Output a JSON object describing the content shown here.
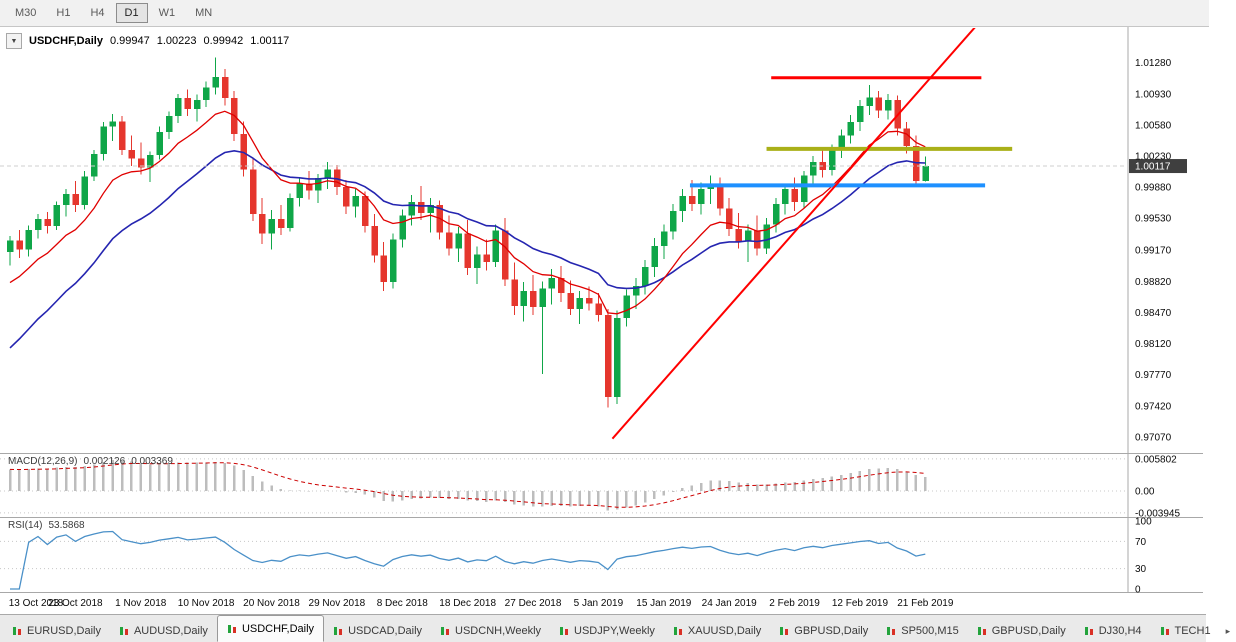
{
  "timeframe_toolbar": {
    "items": [
      {
        "label": "M30",
        "active": false
      },
      {
        "label": "H1",
        "active": false
      },
      {
        "label": "H4",
        "active": false
      },
      {
        "label": "D1",
        "active": true
      },
      {
        "label": "W1",
        "active": false
      },
      {
        "label": "MN",
        "active": false
      }
    ]
  },
  "chart_header": {
    "dropdown_icon": "▼",
    "symbol_label": "USDCHF,Daily",
    "open": "0.99947",
    "high": "1.00223",
    "low": "0.99942",
    "close": "1.00117"
  },
  "price_axis": {
    "ticks": [
      {
        "text": "1.01280",
        "value": 1.0128
      },
      {
        "text": "1.00930",
        "value": 1.0093
      },
      {
        "text": "1.00580",
        "value": 1.0058
      },
      {
        "text": "1.00230",
        "value": 1.0023
      },
      {
        "text": "0.99880",
        "value": 0.9988
      },
      {
        "text": "0.99530",
        "value": 0.9953
      },
      {
        "text": "0.99170",
        "value": 0.9917
      },
      {
        "text": "0.98820",
        "value": 0.9882
      },
      {
        "text": "0.98470",
        "value": 0.9847
      },
      {
        "text": "0.98120",
        "value": 0.9812
      },
      {
        "text": "0.97770",
        "value": 0.9777
      },
      {
        "text": "0.97420",
        "value": 0.9742
      },
      {
        "text": "0.97070",
        "value": 0.9707
      }
    ],
    "current_price_label": "1.00117",
    "current_price_value": 1.00117
  },
  "time_axis": {
    "labels": [
      {
        "text": "13 Oct 2018",
        "bar": 0
      },
      {
        "text": "23 Oct 2018",
        "bar": 7
      },
      {
        "text": "1 Nov 2018",
        "bar": 14
      },
      {
        "text": "10 Nov 2018",
        "bar": 21
      },
      {
        "text": "20 Nov 2018",
        "bar": 28
      },
      {
        "text": "29 Nov 2018",
        "bar": 35
      },
      {
        "text": "8 Dec 2018",
        "bar": 42
      },
      {
        "text": "18 Dec 2018",
        "bar": 49
      },
      {
        "text": "27 Dec 2018",
        "bar": 56
      },
      {
        "text": "5 Jan 2019",
        "bar": 63
      },
      {
        "text": "15 Jan 2019",
        "bar": 70
      },
      {
        "text": "24 Jan 2019",
        "bar": 77
      },
      {
        "text": "2 Feb 2019",
        "bar": 84
      },
      {
        "text": "12 Feb 2019",
        "bar": 91
      },
      {
        "text": "21 Feb 2019",
        "bar": 98
      }
    ]
  },
  "indicators": {
    "macd": {
      "name": "MACD(12,26,9)",
      "value": "0.002126",
      "signal": "0.003369",
      "axis": [
        {
          "text": "0.005802",
          "value": 0.005802
        },
        {
          "text": "0.00",
          "value": 0
        },
        {
          "text": "-0.003945",
          "value": -0.003945
        }
      ]
    },
    "rsi": {
      "name": "RSI(14)",
      "value": "53.5868",
      "axis": [
        {
          "text": "100",
          "value": 100
        },
        {
          "text": "70",
          "value": 70
        },
        {
          "text": "30",
          "value": 30
        },
        {
          "text": "0",
          "value": 0
        }
      ],
      "levels": [
        70,
        30
      ]
    }
  },
  "colors": {
    "candle_up": "#0fa648",
    "candle_down": "#e5362d",
    "ma_fast": "#e00000",
    "ma_slow": "#2525b0",
    "macd_histogram": "#bdbdbd",
    "macd_signal": "#cc0000",
    "rsi_line": "#4a90c8",
    "grid_dotted": "#c8c8c8",
    "axis_text": "#0a0a0a",
    "price_tag_bg": "#3f3f3f",
    "price_tag_text": "#ffffff"
  },
  "chart_data": {
    "type": "candlestick",
    "symbol": "USDCHF",
    "timeframe": "Daily",
    "ohlc_current": {
      "open": 0.99947,
      "high": 1.00223,
      "low": 0.99942,
      "close": 1.00117
    },
    "price_range": [
      0.969,
      1.0167
    ],
    "grid": false,
    "candles": [
      [
        0.9915,
        0.9933,
        0.99,
        0.9928
      ],
      [
        0.9928,
        0.994,
        0.9908,
        0.9918
      ],
      [
        0.9918,
        0.9945,
        0.991,
        0.994
      ],
      [
        0.994,
        0.9958,
        0.993,
        0.9952
      ],
      [
        0.9952,
        0.996,
        0.9936,
        0.9944
      ],
      [
        0.9944,
        0.9972,
        0.994,
        0.9968
      ],
      [
        0.9968,
        0.9986,
        0.9955,
        0.998
      ],
      [
        0.998,
        0.9995,
        0.996,
        0.9968
      ],
      [
        0.9968,
        1.0006,
        0.9963,
        1.0
      ],
      [
        1.0,
        1.003,
        0.9995,
        1.0025
      ],
      [
        1.0025,
        1.0061,
        1.0018,
        1.0056
      ],
      [
        1.0056,
        1.007,
        1.004,
        1.0062
      ],
      [
        1.0062,
        1.0068,
        1.0024,
        1.003
      ],
      [
        1.003,
        1.0046,
        1.0012,
        1.002
      ],
      [
        1.002,
        1.0038,
        1.0002,
        1.001
      ],
      [
        1.001,
        1.0028,
        0.9994,
        1.0024
      ],
      [
        1.0024,
        1.0056,
        1.0019,
        1.005
      ],
      [
        1.005,
        1.0073,
        1.0042,
        1.0068
      ],
      [
        1.0068,
        1.0093,
        1.006,
        1.0088
      ],
      [
        1.0088,
        1.0098,
        1.0068,
        1.0076
      ],
      [
        1.0076,
        1.0092,
        1.0062,
        1.0086
      ],
      [
        1.0086,
        1.0107,
        1.0078,
        1.01
      ],
      [
        1.01,
        1.0134,
        1.0092,
        1.0112
      ],
      [
        1.0112,
        1.0121,
        1.008,
        1.0088
      ],
      [
        1.0088,
        1.0096,
        1.004,
        1.0048
      ],
      [
        1.0048,
        1.0062,
        1.0,
        1.0008
      ],
      [
        1.0008,
        1.002,
        0.995,
        0.9958
      ],
      [
        0.9958,
        0.9976,
        0.9924,
        0.9936
      ],
      [
        0.9936,
        0.9962,
        0.9918,
        0.9952
      ],
      [
        0.9952,
        0.9968,
        0.9934,
        0.9942
      ],
      [
        0.9942,
        0.9981,
        0.9938,
        0.9976
      ],
      [
        0.9976,
        0.9999,
        0.9966,
        0.9992
      ],
      [
        0.9992,
        1.0006,
        0.9974,
        0.9984
      ],
      [
        0.9984,
        1.0003,
        0.997,
        0.9998
      ],
      [
        0.9998,
        1.0016,
        0.9986,
        1.0008
      ],
      [
        1.0008,
        1.0013,
        0.9979,
        0.9988
      ],
      [
        0.9988,
        0.9996,
        0.9958,
        0.9966
      ],
      [
        0.9966,
        0.9986,
        0.9954,
        0.9978
      ],
      [
        0.9978,
        0.9983,
        0.9937,
        0.9944
      ],
      [
        0.9944,
        0.9958,
        0.9903,
        0.9911
      ],
      [
        0.9911,
        0.9926,
        0.9871,
        0.9881
      ],
      [
        0.9881,
        0.9936,
        0.9874,
        0.9929
      ],
      [
        0.9929,
        0.9963,
        0.992,
        0.9956
      ],
      [
        0.9956,
        0.9979,
        0.9945,
        0.9971
      ],
      [
        0.9971,
        0.9989,
        0.9951,
        0.9959
      ],
      [
        0.9959,
        0.9976,
        0.9937,
        0.9968
      ],
      [
        0.9968,
        0.9973,
        0.9929,
        0.9937
      ],
      [
        0.9937,
        0.9956,
        0.9911,
        0.9919
      ],
      [
        0.9919,
        0.9943,
        0.9904,
        0.9936
      ],
      [
        0.9936,
        0.9951,
        0.9889,
        0.9897
      ],
      [
        0.9897,
        0.9921,
        0.9879,
        0.9912
      ],
      [
        0.9912,
        0.9929,
        0.9894,
        0.9904
      ],
      [
        0.9904,
        0.9946,
        0.9898,
        0.9939
      ],
      [
        0.9939,
        0.9953,
        0.9877,
        0.9884
      ],
      [
        0.9884,
        0.9903,
        0.9844,
        0.9854
      ],
      [
        0.9854,
        0.9881,
        0.9837,
        0.9871
      ],
      [
        0.9871,
        0.9889,
        0.9844,
        0.9853
      ],
      [
        0.9853,
        0.9882,
        0.9778,
        0.9874
      ],
      [
        0.9874,
        0.9896,
        0.9856,
        0.9886
      ],
      [
        0.9886,
        0.9899,
        0.9859,
        0.9869
      ],
      [
        0.9869,
        0.9883,
        0.9844,
        0.9851
      ],
      [
        0.9851,
        0.9871,
        0.9834,
        0.9863
      ],
      [
        0.9863,
        0.9876,
        0.9849,
        0.9857
      ],
      [
        0.9857,
        0.9869,
        0.9837,
        0.9844
      ],
      [
        0.9844,
        0.9851,
        0.974,
        0.9752
      ],
      [
        0.9752,
        0.9849,
        0.9744,
        0.9841
      ],
      [
        0.9841,
        0.9873,
        0.9831,
        0.9866
      ],
      [
        0.9866,
        0.9886,
        0.9851,
        0.9877
      ],
      [
        0.9877,
        0.9906,
        0.9867,
        0.9898
      ],
      [
        0.9898,
        0.9931,
        0.9887,
        0.9922
      ],
      [
        0.9922,
        0.9946,
        0.9907,
        0.9938
      ],
      [
        0.9938,
        0.9969,
        0.9929,
        0.9961
      ],
      [
        0.9961,
        0.9986,
        0.9949,
        0.9978
      ],
      [
        0.9978,
        0.9996,
        0.9961,
        0.9969
      ],
      [
        0.9969,
        0.9993,
        0.9957,
        0.9986
      ],
      [
        0.9986,
        1.0001,
        0.9969,
        0.9992
      ],
      [
        0.9992,
        0.9999,
        0.9956,
        0.9964
      ],
      [
        0.9964,
        0.9976,
        0.9933,
        0.9941
      ],
      [
        0.9941,
        0.9959,
        0.9919,
        0.9927
      ],
      [
        0.9927,
        0.9946,
        0.9904,
        0.9939
      ],
      [
        0.9939,
        0.9956,
        0.9911,
        0.9919
      ],
      [
        0.9919,
        0.9953,
        0.9913,
        0.9946
      ],
      [
        0.9946,
        0.9976,
        0.9937,
        0.9969
      ],
      [
        0.9969,
        0.9991,
        0.9957,
        0.9986
      ],
      [
        0.9986,
        0.9999,
        0.9961,
        0.9971
      ],
      [
        0.9971,
        1.0006,
        0.9964,
        1.0001
      ],
      [
        1.0001,
        1.0023,
        0.9991,
        1.0016
      ],
      [
        1.0016,
        1.0029,
        0.9999,
        1.0007
      ],
      [
        1.0007,
        1.0036,
        1.0001,
        1.0031
      ],
      [
        1.0031,
        1.0053,
        1.0021,
        1.0046
      ],
      [
        1.0046,
        1.0069,
        1.0037,
        1.0061
      ],
      [
        1.0061,
        1.0086,
        1.0051,
        1.0079
      ],
      [
        1.0079,
        1.0103,
        1.0069,
        1.0089
      ],
      [
        1.0089,
        1.0096,
        1.0066,
        1.0074
      ],
      [
        1.0074,
        1.0093,
        1.0064,
        1.0086
      ],
      [
        1.0086,
        1.0091,
        1.0046,
        1.0054
      ],
      [
        1.0054,
        1.0061,
        1.0026,
        1.0034
      ],
      [
        1.0034,
        1.0046,
        0.9988,
        0.9995
      ],
      [
        0.99947,
        1.00223,
        0.99942,
        1.00117
      ]
    ],
    "ma_fast": {
      "period": 10,
      "seed": 0.987
    },
    "ma_slow": {
      "period": 21,
      "seed": 0.9795
    },
    "macd_seeds": {
      "fast": 0.988,
      "slow": 0.9842
    },
    "overlay_lines": [
      {
        "name": "resistance-line",
        "price": 1.0111,
        "from_bar": 81.5,
        "to_bar": 104,
        "color": "#ff0000",
        "width": 3
      },
      {
        "name": "breakout-level-line",
        "price": 1.0031,
        "from_bar": 81,
        "to_bar": 107.3,
        "color": "#a9b018",
        "width": 4
      },
      {
        "name": "support-line",
        "price": 0.999,
        "from_bar": 72.8,
        "to_bar": 104.4,
        "color": "#1e90ff",
        "width": 4
      }
    ],
    "trendline": {
      "name": "ascending-trendline",
      "from_bar": 64.5,
      "from_price": 0.9705,
      "to_bar": 103.5,
      "to_price": 1.017,
      "color": "#ff0000",
      "width": 2
    }
  },
  "tab_bar": {
    "tabs": [
      {
        "label": "EURUSD,Daily",
        "active": false
      },
      {
        "label": "AUDUSD,Daily",
        "active": false
      },
      {
        "label": "USDCHF,Daily",
        "active": true
      },
      {
        "label": "USDCAD,Daily",
        "active": false
      },
      {
        "label": "USDCNH,Weekly",
        "active": false
      },
      {
        "label": "USDJPY,Weekly",
        "active": false
      },
      {
        "label": "XAUUSD,Daily",
        "active": false
      },
      {
        "label": "GBPUSD,Daily",
        "active": false
      },
      {
        "label": "SP500,M15",
        "active": false
      },
      {
        "label": "GBPUSD,Daily",
        "active": false
      },
      {
        "label": "DJ30,H4",
        "active": false
      },
      {
        "label": "TECH1",
        "active": false
      }
    ],
    "overflow_indicator": "▸"
  }
}
